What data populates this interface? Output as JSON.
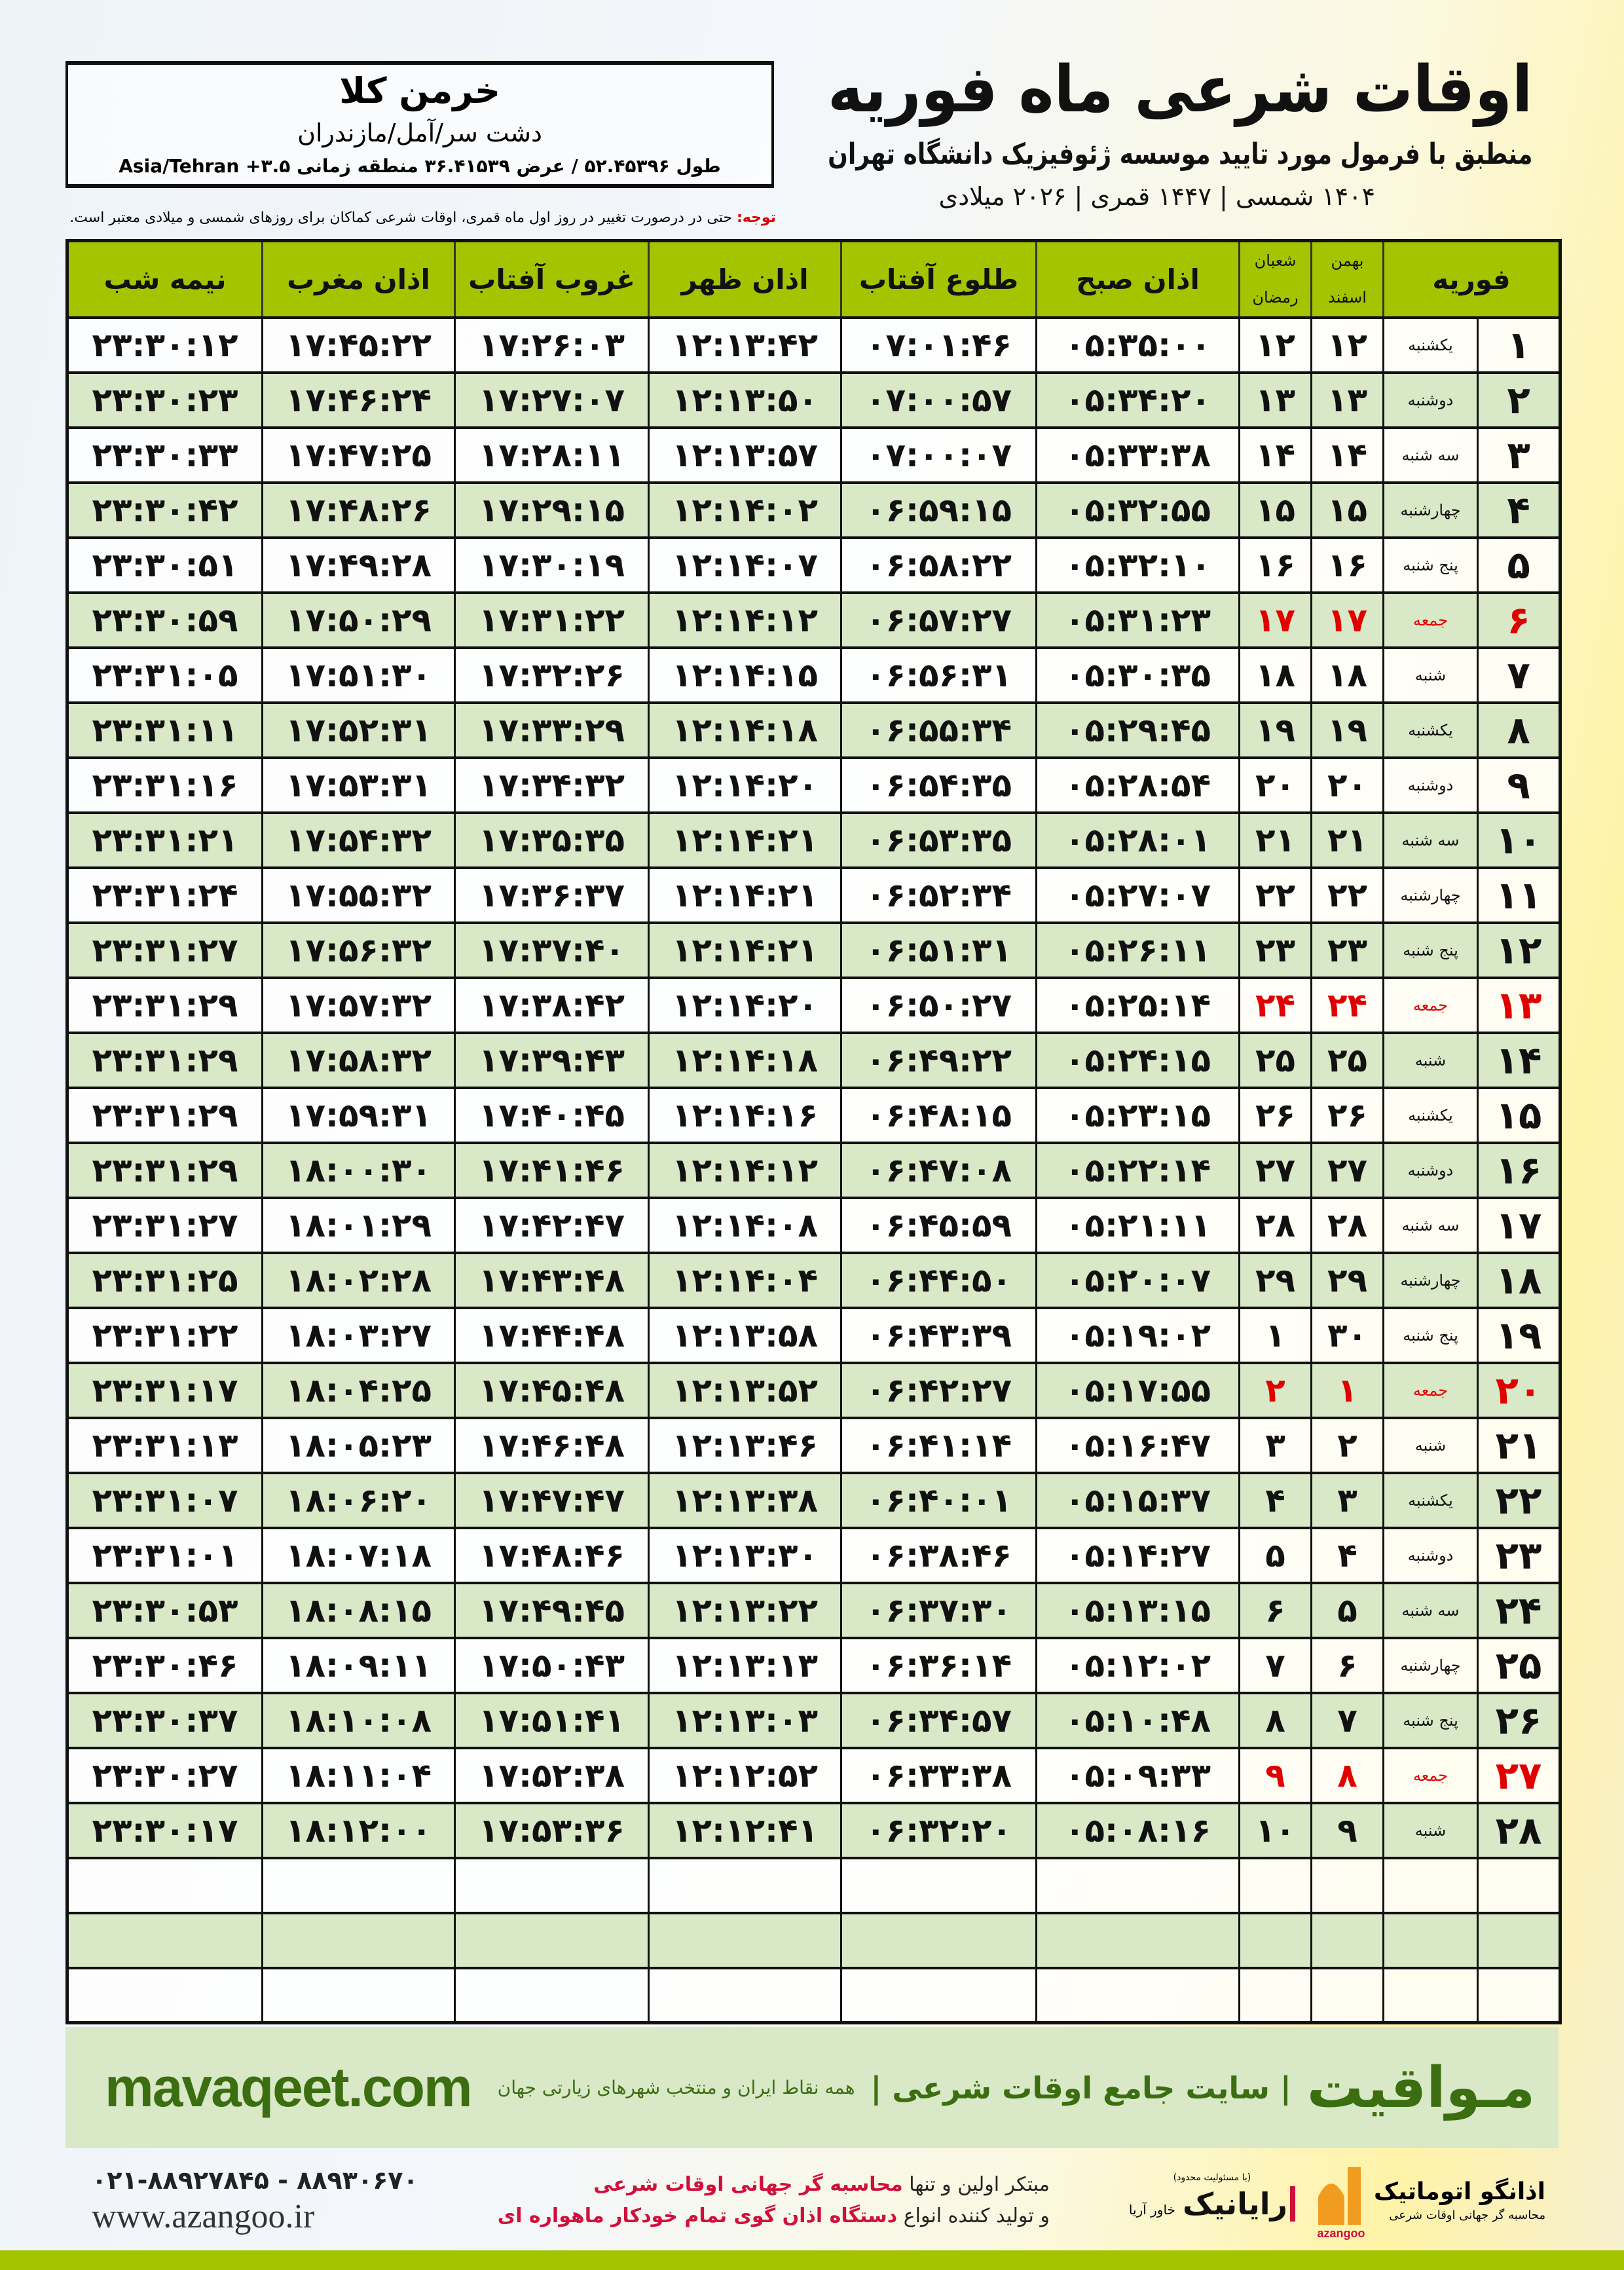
{
  "header": {
    "title": "اوقات شرعی ماه فوریه",
    "subtitle": "منطبق با فرمول مورد تایید موسسه ژئوفیزیک دانشگاه تهران",
    "years": "۱۴۰۴ شمسی | ۱۴۴۷ قمری | ۲۰۲۶ میلادی"
  },
  "location": {
    "city": "خرمن کلا",
    "region": "دشت سر/آمل/مازندران",
    "coords": "طول ۵۲.۴۵۳۹۶ / عرض ۳۶.۴۱۵۳۹ منطقه زمانی ۳.۵+ Asia/Tehran"
  },
  "note": {
    "label": "توجه:",
    "text": " حتی در درصورت تغییر در روز اول ماه قمری، اوقات شرعی کماکان برای روزهای شمسی و میلادی معتبر است."
  },
  "table": {
    "headers": {
      "month": "فوریه",
      "solar1": "بهمن",
      "solar2": "اسفند",
      "lunar1": "شعبان",
      "lunar2": "رمضان",
      "fajr": "اذان صبح",
      "sunrise": "طلوع آفتاب",
      "dhuhr": "اذان ظهر",
      "sunset": "غروب آفتاب",
      "maghrib": "اذان مغرب",
      "midnight": "نیمه شب"
    },
    "highlight_color": "#e00000",
    "rows": [
      {
        "day": "۱",
        "weekday": "یکشنبه",
        "solar": "۱۲",
        "lunar": "۱۲",
        "fajr": "۰۵:۳۵:۰۰",
        "sunrise": "۰۷:۰۱:۴۶",
        "dhuhr": "۱۲:۱۳:۴۲",
        "sunset": "۱۷:۲۶:۰۳",
        "maghrib": "۱۷:۴۵:۲۲",
        "midnight": "۲۳:۳۰:۱۲"
      },
      {
        "day": "۲",
        "weekday": "دوشنبه",
        "solar": "۱۳",
        "lunar": "۱۳",
        "fajr": "۰۵:۳۴:۲۰",
        "sunrise": "۰۷:۰۰:۵۷",
        "dhuhr": "۱۲:۱۳:۵۰",
        "sunset": "۱۷:۲۷:۰۷",
        "maghrib": "۱۷:۴۶:۲۴",
        "midnight": "۲۳:۳۰:۲۳"
      },
      {
        "day": "۳",
        "weekday": "سه شنبه",
        "solar": "۱۴",
        "lunar": "۱۴",
        "fajr": "۰۵:۳۳:۳۸",
        "sunrise": "۰۷:۰۰:۰۷",
        "dhuhr": "۱۲:۱۳:۵۷",
        "sunset": "۱۷:۲۸:۱۱",
        "maghrib": "۱۷:۴۷:۲۵",
        "midnight": "۲۳:۳۰:۳۳"
      },
      {
        "day": "۴",
        "weekday": "چهارشنبه",
        "solar": "۱۵",
        "lunar": "۱۵",
        "fajr": "۰۵:۳۲:۵۵",
        "sunrise": "۰۶:۵۹:۱۵",
        "dhuhr": "۱۲:۱۴:۰۲",
        "sunset": "۱۷:۲۹:۱۵",
        "maghrib": "۱۷:۴۸:۲۶",
        "midnight": "۲۳:۳۰:۴۲"
      },
      {
        "day": "۵",
        "weekday": "پنج شنبه",
        "solar": "۱۶",
        "lunar": "۱۶",
        "fajr": "۰۵:۳۲:۱۰",
        "sunrise": "۰۶:۵۸:۲۲",
        "dhuhr": "۱۲:۱۴:۰۷",
        "sunset": "۱۷:۳۰:۱۹",
        "maghrib": "۱۷:۴۹:۲۸",
        "midnight": "۲۳:۳۰:۵۱"
      },
      {
        "day": "۶",
        "weekday": "جمعه",
        "solar": "۱۷",
        "lunar": "۱۷",
        "fajr": "۰۵:۳۱:۲۳",
        "sunrise": "۰۶:۵۷:۲۷",
        "dhuhr": "۱۲:۱۴:۱۲",
        "sunset": "۱۷:۳۱:۲۲",
        "maghrib": "۱۷:۵۰:۲۹",
        "midnight": "۲۳:۳۰:۵۹",
        "holiday": true
      },
      {
        "day": "۷",
        "weekday": "شنبه",
        "solar": "۱۸",
        "lunar": "۱۸",
        "fajr": "۰۵:۳۰:۳۵",
        "sunrise": "۰۶:۵۶:۳۱",
        "dhuhr": "۱۲:۱۴:۱۵",
        "sunset": "۱۷:۳۲:۲۶",
        "maghrib": "۱۷:۵۱:۳۰",
        "midnight": "۲۳:۳۱:۰۵"
      },
      {
        "day": "۸",
        "weekday": "یکشنبه",
        "solar": "۱۹",
        "lunar": "۱۹",
        "fajr": "۰۵:۲۹:۴۵",
        "sunrise": "۰۶:۵۵:۳۴",
        "dhuhr": "۱۲:۱۴:۱۸",
        "sunset": "۱۷:۳۳:۲۹",
        "maghrib": "۱۷:۵۲:۳۱",
        "midnight": "۲۳:۳۱:۱۱"
      },
      {
        "day": "۹",
        "weekday": "دوشنبه",
        "solar": "۲۰",
        "lunar": "۲۰",
        "fajr": "۰۵:۲۸:۵۴",
        "sunrise": "۰۶:۵۴:۳۵",
        "dhuhr": "۱۲:۱۴:۲۰",
        "sunset": "۱۷:۳۴:۳۲",
        "maghrib": "۱۷:۵۳:۳۱",
        "midnight": "۲۳:۳۱:۱۶"
      },
      {
        "day": "۱۰",
        "weekday": "سه شنبه",
        "solar": "۲۱",
        "lunar": "۲۱",
        "fajr": "۰۵:۲۸:۰۱",
        "sunrise": "۰۶:۵۳:۳۵",
        "dhuhr": "۱۲:۱۴:۲۱",
        "sunset": "۱۷:۳۵:۳۵",
        "maghrib": "۱۷:۵۴:۳۲",
        "midnight": "۲۳:۳۱:۲۱"
      },
      {
        "day": "۱۱",
        "weekday": "چهارشنبه",
        "solar": "۲۲",
        "lunar": "۲۲",
        "fajr": "۰۵:۲۷:۰۷",
        "sunrise": "۰۶:۵۲:۳۴",
        "dhuhr": "۱۲:۱۴:۲۱",
        "sunset": "۱۷:۳۶:۳۷",
        "maghrib": "۱۷:۵۵:۳۲",
        "midnight": "۲۳:۳۱:۲۴"
      },
      {
        "day": "۱۲",
        "weekday": "پنج شنبه",
        "solar": "۲۳",
        "lunar": "۲۳",
        "fajr": "۰۵:۲۶:۱۱",
        "sunrise": "۰۶:۵۱:۳۱",
        "dhuhr": "۱۲:۱۴:۲۱",
        "sunset": "۱۷:۳۷:۴۰",
        "maghrib": "۱۷:۵۶:۳۲",
        "midnight": "۲۳:۳۱:۲۷"
      },
      {
        "day": "۱۳",
        "weekday": "جمعه",
        "solar": "۲۴",
        "lunar": "۲۴",
        "fajr": "۰۵:۲۵:۱۴",
        "sunrise": "۰۶:۵۰:۲۷",
        "dhuhr": "۱۲:۱۴:۲۰",
        "sunset": "۱۷:۳۸:۴۲",
        "maghrib": "۱۷:۵۷:۳۲",
        "midnight": "۲۳:۳۱:۲۹",
        "holiday": true
      },
      {
        "day": "۱۴",
        "weekday": "شنبه",
        "solar": "۲۵",
        "lunar": "۲۵",
        "fajr": "۰۵:۲۴:۱۵",
        "sunrise": "۰۶:۴۹:۲۲",
        "dhuhr": "۱۲:۱۴:۱۸",
        "sunset": "۱۷:۳۹:۴۳",
        "maghrib": "۱۷:۵۸:۳۲",
        "midnight": "۲۳:۳۱:۲۹"
      },
      {
        "day": "۱۵",
        "weekday": "یکشنبه",
        "solar": "۲۶",
        "lunar": "۲۶",
        "fajr": "۰۵:۲۳:۱۵",
        "sunrise": "۰۶:۴۸:۱۵",
        "dhuhr": "۱۲:۱۴:۱۶",
        "sunset": "۱۷:۴۰:۴۵",
        "maghrib": "۱۷:۵۹:۳۱",
        "midnight": "۲۳:۳۱:۲۹"
      },
      {
        "day": "۱۶",
        "weekday": "دوشنبه",
        "solar": "۲۷",
        "lunar": "۲۷",
        "fajr": "۰۵:۲۲:۱۴",
        "sunrise": "۰۶:۴۷:۰۸",
        "dhuhr": "۱۲:۱۴:۱۲",
        "sunset": "۱۷:۴۱:۴۶",
        "maghrib": "۱۸:۰۰:۳۰",
        "midnight": "۲۳:۳۱:۲۹"
      },
      {
        "day": "۱۷",
        "weekday": "سه شنبه",
        "solar": "۲۸",
        "lunar": "۲۸",
        "fajr": "۰۵:۲۱:۱۱",
        "sunrise": "۰۶:۴۵:۵۹",
        "dhuhr": "۱۲:۱۴:۰۸",
        "sunset": "۱۷:۴۲:۴۷",
        "maghrib": "۱۸:۰۱:۲۹",
        "midnight": "۲۳:۳۱:۲۷"
      },
      {
        "day": "۱۸",
        "weekday": "چهارشنبه",
        "solar": "۲۹",
        "lunar": "۲۹",
        "fajr": "۰۵:۲۰:۰۷",
        "sunrise": "۰۶:۴۴:۵۰",
        "dhuhr": "۱۲:۱۴:۰۴",
        "sunset": "۱۷:۴۳:۴۸",
        "maghrib": "۱۸:۰۲:۲۸",
        "midnight": "۲۳:۳۱:۲۵"
      },
      {
        "day": "۱۹",
        "weekday": "پنج شنبه",
        "solar": "۳۰",
        "lunar": "۱",
        "fajr": "۰۵:۱۹:۰۲",
        "sunrise": "۰۶:۴۳:۳۹",
        "dhuhr": "۱۲:۱۳:۵۸",
        "sunset": "۱۷:۴۴:۴۸",
        "maghrib": "۱۸:۰۳:۲۷",
        "midnight": "۲۳:۳۱:۲۲"
      },
      {
        "day": "۲۰",
        "weekday": "جمعه",
        "solar": "۱",
        "lunar": "۲",
        "fajr": "۰۵:۱۷:۵۵",
        "sunrise": "۰۶:۴۲:۲۷",
        "dhuhr": "۱۲:۱۳:۵۲",
        "sunset": "۱۷:۴۵:۴۸",
        "maghrib": "۱۸:۰۴:۲۵",
        "midnight": "۲۳:۳۱:۱۷",
        "holiday": true
      },
      {
        "day": "۲۱",
        "weekday": "شنبه",
        "solar": "۲",
        "lunar": "۳",
        "fajr": "۰۵:۱۶:۴۷",
        "sunrise": "۰۶:۴۱:۱۴",
        "dhuhr": "۱۲:۱۳:۴۶",
        "sunset": "۱۷:۴۶:۴۸",
        "maghrib": "۱۸:۰۵:۲۳",
        "midnight": "۲۳:۳۱:۱۳"
      },
      {
        "day": "۲۲",
        "weekday": "یکشنبه",
        "solar": "۳",
        "lunar": "۴",
        "fajr": "۰۵:۱۵:۳۷",
        "sunrise": "۰۶:۴۰:۰۱",
        "dhuhr": "۱۲:۱۳:۳۸",
        "sunset": "۱۷:۴۷:۴۷",
        "maghrib": "۱۸:۰۶:۲۰",
        "midnight": "۲۳:۳۱:۰۷"
      },
      {
        "day": "۲۳",
        "weekday": "دوشنبه",
        "solar": "۴",
        "lunar": "۵",
        "fajr": "۰۵:۱۴:۲۷",
        "sunrise": "۰۶:۳۸:۴۶",
        "dhuhr": "۱۲:۱۳:۳۰",
        "sunset": "۱۷:۴۸:۴۶",
        "maghrib": "۱۸:۰۷:۱۸",
        "midnight": "۲۳:۳۱:۰۱"
      },
      {
        "day": "۲۴",
        "weekday": "سه شنبه",
        "solar": "۵",
        "lunar": "۶",
        "fajr": "۰۵:۱۳:۱۵",
        "sunrise": "۰۶:۳۷:۳۰",
        "dhuhr": "۱۲:۱۳:۲۲",
        "sunset": "۱۷:۴۹:۴۵",
        "maghrib": "۱۸:۰۸:۱۵",
        "midnight": "۲۳:۳۰:۵۳"
      },
      {
        "day": "۲۵",
        "weekday": "چهارشنبه",
        "solar": "۶",
        "lunar": "۷",
        "fajr": "۰۵:۱۲:۰۲",
        "sunrise": "۰۶:۳۶:۱۴",
        "dhuhr": "۱۲:۱۳:۱۳",
        "sunset": "۱۷:۵۰:۴۳",
        "maghrib": "۱۸:۰۹:۱۱",
        "midnight": "۲۳:۳۰:۴۶"
      },
      {
        "day": "۲۶",
        "weekday": "پنج شنبه",
        "solar": "۷",
        "lunar": "۸",
        "fajr": "۰۵:۱۰:۴۸",
        "sunrise": "۰۶:۳۴:۵۷",
        "dhuhr": "۱۲:۱۳:۰۳",
        "sunset": "۱۷:۵۱:۴۱",
        "maghrib": "۱۸:۱۰:۰۸",
        "midnight": "۲۳:۳۰:۳۷"
      },
      {
        "day": "۲۷",
        "weekday": "جمعه",
        "solar": "۸",
        "lunar": "۹",
        "fajr": "۰۵:۰۹:۳۳",
        "sunrise": "۰۶:۳۳:۳۸",
        "dhuhr": "۱۲:۱۲:۵۲",
        "sunset": "۱۷:۵۲:۳۸",
        "maghrib": "۱۸:۱۱:۰۴",
        "midnight": "۲۳:۳۰:۲۷",
        "holiday": true
      },
      {
        "day": "۲۸",
        "weekday": "شنبه",
        "solar": "۹",
        "lunar": "۱۰",
        "fajr": "۰۵:۰۸:۱۶",
        "sunrise": "۰۶:۳۲:۲۰",
        "dhuhr": "۱۲:۱۲:۴۱",
        "sunset": "۱۷:۵۳:۳۶",
        "maghrib": "۱۸:۱۲:۰۰",
        "midnight": "۲۳:۳۰:۱۷"
      }
    ]
  },
  "promo": {
    "logo": "مـواقیت",
    "tagline": "| سایت جامع اوقات شرعی |",
    "sub": "همه نقاط ایران و منتخب شهرهای زیارتی جهان",
    "url": "mavaqeet.com"
  },
  "footer": {
    "phones": "۰۲۱-۸۸۹۲۷۸۴۵ - ۸۸۹۳۰۶۷۰",
    "url": "www.azangoo.ir",
    "ad_line1_a": "مبتکر اولین و تنها ",
    "ad_line1_b": "محاسبه گر جهانی اوقات شرعی",
    "ad_line2_a": "و تولید کننده انواع ",
    "ad_line2_b": "دستگاه اذان گوی تمام خودکار ماهواره ای",
    "rayanik_small": "(با مسئولیت محدود)",
    "rayanik": "رایانیک",
    "rayanik_side": "خاور آریا",
    "azangoo": "اذانگو اتوماتیک",
    "azangoo_sub": "محاسبه گر جهانی اوقات شرعی",
    "azangoo_en": "azangoo"
  }
}
